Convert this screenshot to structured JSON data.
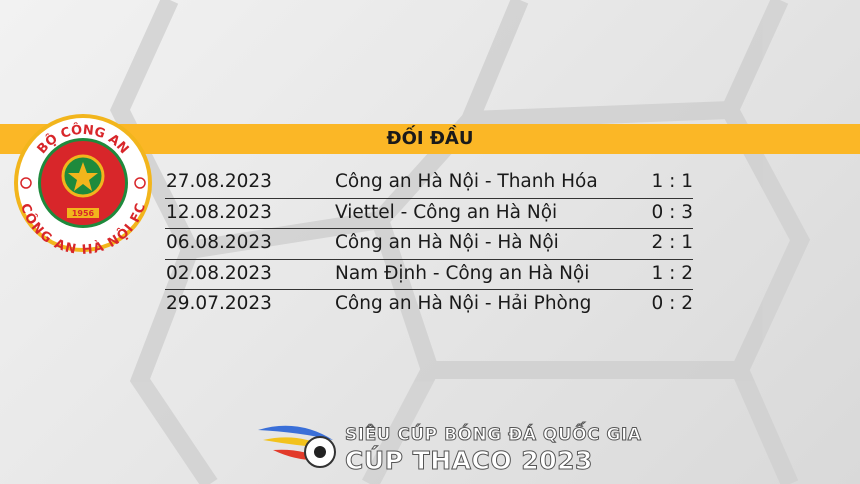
{
  "header": {
    "title": "ĐỐI ĐẦU"
  },
  "logo": {
    "top_text": "BỘ CÔNG AN",
    "bottom_text": "CÔNG AN HÀ NỘI FC",
    "year": "1956"
  },
  "matches": [
    {
      "date": "27.08.2023",
      "match": "Công an Hà Nội - Thanh Hóa",
      "score": "1 : 1"
    },
    {
      "date": "12.08.2023",
      "match": "Viettel - Công an Hà Nội",
      "score": "0 : 3"
    },
    {
      "date": "06.08.2023",
      "match": "Công an Hà Nội - Hà Nội",
      "score": "2 : 1"
    },
    {
      "date": "02.08.2023",
      "match": "Nam Định - Công an Hà Nội",
      "score": "1 : 2"
    },
    {
      "date": "29.07.2023",
      "match": "Công an Hà Nội - Hải Phòng",
      "score": "0 : 2"
    }
  ],
  "footer": {
    "line1": "SIÊU CÚP BÓNG ĐÁ QUỐC GIA",
    "line2": "CÚP THACO 2023"
  },
  "colors": {
    "band": "#fbb726",
    "logo_red": "#d8262a",
    "logo_green": "#1e8a3c",
    "logo_gold": "#f2b51c"
  }
}
